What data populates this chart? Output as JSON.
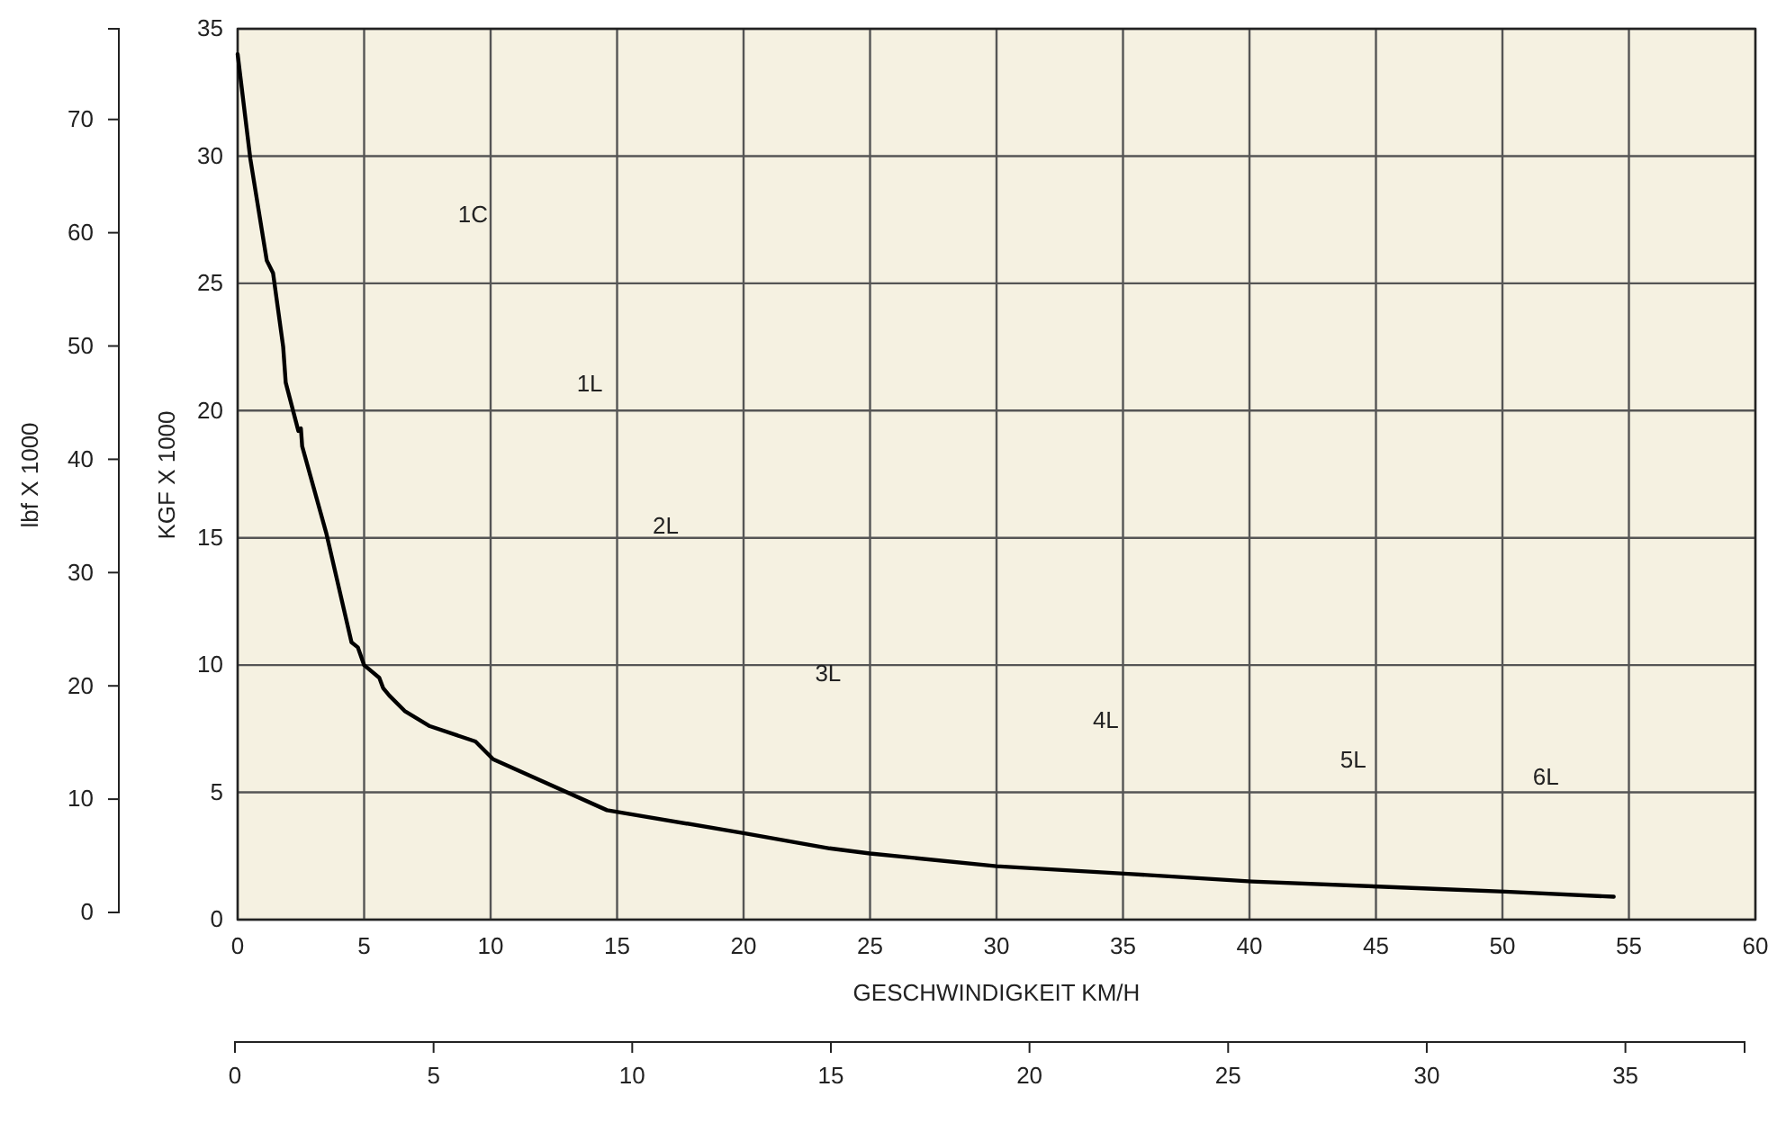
{
  "chart_data": {
    "type": "line",
    "xlabel": "GESCHWINDIGKEIT KM/H",
    "ylabel": "KGF X 1000",
    "y2label": "lbf X 1000",
    "xlim": [
      0,
      60
    ],
    "xticks": [
      0,
      5,
      10,
      15,
      20,
      25,
      30,
      35,
      40,
      45,
      50,
      55,
      60
    ],
    "ylim": [
      0,
      35
    ],
    "yticks": [
      0,
      5,
      10,
      15,
      20,
      25,
      30,
      35
    ],
    "y2lim": [
      0,
      78
    ],
    "y2ticks": [
      0,
      10,
      20,
      30,
      40,
      50,
      60,
      70
    ],
    "x2lim": [
      0,
      38
    ],
    "x2ticks": [
      0,
      5,
      10,
      15,
      20,
      25,
      30,
      35
    ],
    "grid": true,
    "line_style": "solid",
    "marker": "none",
    "series": [
      {
        "color": "#000000",
        "x": [
          0,
          0.5,
          1.15,
          1.4,
          1.8,
          1.9,
          2.4,
          2.5,
          2.55,
          3.5,
          4.5,
          4.75,
          5,
          5.6,
          5.75,
          6,
          6.6,
          7.6,
          9.4,
          10.1,
          14.6,
          20,
          23.4,
          25,
          30,
          35.2,
          40.1,
          45.1,
          47.5,
          50.1,
          54.4
        ],
        "values": [
          34,
          29.9,
          25.9,
          25.4,
          22.5,
          21.1,
          19.2,
          19.3,
          18.6,
          15.2,
          10.9,
          10.7,
          10,
          9.5,
          9.1,
          8.8,
          8.2,
          7.6,
          7,
          6.3,
          4.3,
          3.4,
          2.8,
          2.6,
          2.1,
          1.8,
          1.5,
          1.3,
          1.2,
          1.1,
          0.9
        ]
      }
    ],
    "annotations": [
      "1C",
      "1L",
      "2L",
      "3L",
      "4L",
      "5L",
      "6L"
    ]
  }
}
